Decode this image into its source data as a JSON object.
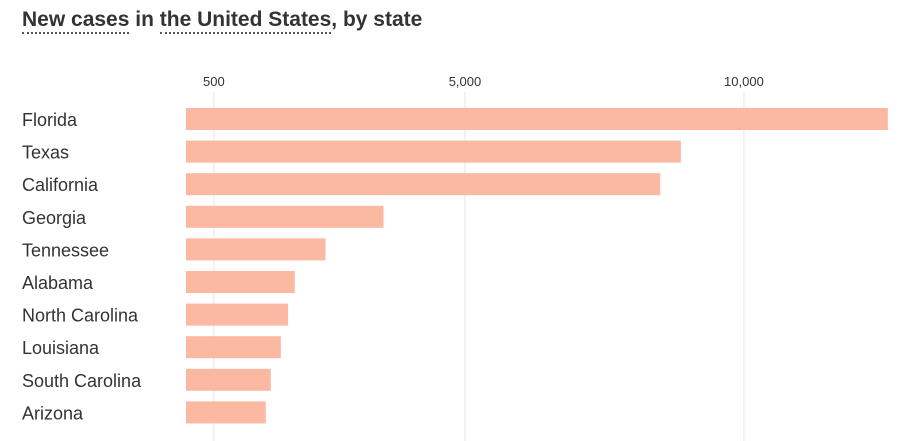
{
  "title": {
    "part1": "New cases",
    "part2": " in ",
    "part3": "the United States",
    "part4": ", by state"
  },
  "chart_data": {
    "type": "bar",
    "orientation": "horizontal",
    "title": "New cases in the United States, by state",
    "categories": [
      "Florida",
      "Texas",
      "California",
      "Georgia",
      "Tennessee",
      "Alabama",
      "North Carolina",
      "Louisiana",
      "South Carolina",
      "Arizona"
    ],
    "values": [
      12580,
      8870,
      8500,
      3540,
      2500,
      1950,
      1830,
      1700,
      1520,
      1430
    ],
    "xticks": [
      500,
      5000,
      10000
    ],
    "xtick_labels": [
      "500",
      "5,000",
      "10,000"
    ],
    "xlim": [
      0,
      12600
    ],
    "grid": true,
    "bar_color": "#fbb9a2",
    "grid_color": "#e6e6e6"
  }
}
